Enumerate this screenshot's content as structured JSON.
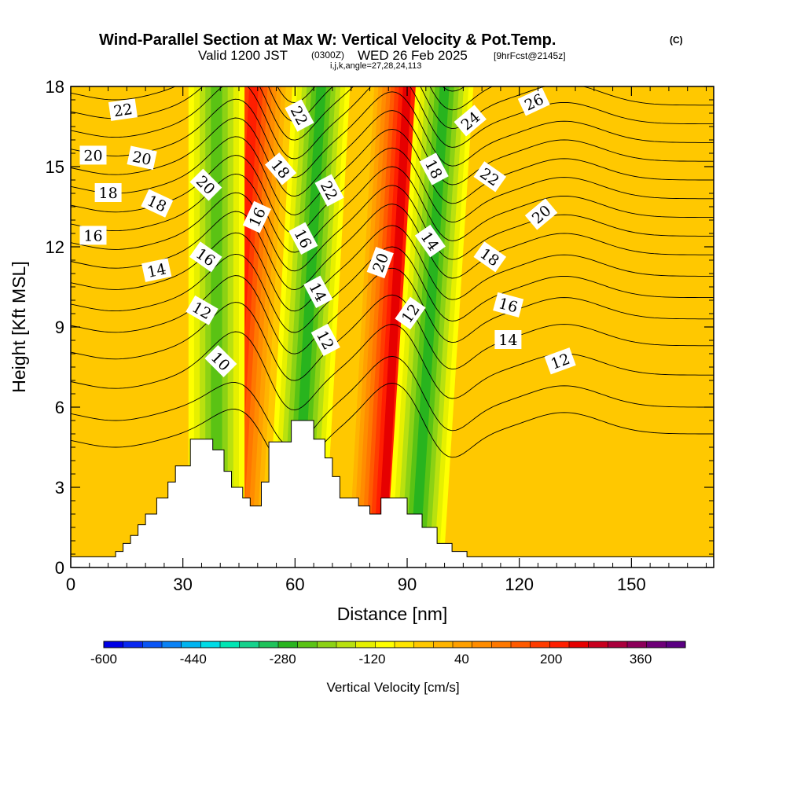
{
  "header": {
    "title": "Wind-Parallel Section at Max W: Vertical Velocity & Pot.Temp.",
    "copyright": "(C)",
    "valid_prefix": "Valid 1200 JST",
    "valid_z": "(0300Z)",
    "valid_date": "WED 26 Feb 2025",
    "forecast": "[9hrFcst@2145z]",
    "indices": "i,j,k,angle=27,28,24,113"
  },
  "chart_data": {
    "type": "heatmap",
    "xlabel": "Distance [nm]",
    "ylabel": "Height [Kft MSL]",
    "xlim": [
      0,
      172
    ],
    "ylim": [
      0,
      18
    ],
    "x_ticks": [
      "0",
      "30",
      "60",
      "90",
      "120",
      "150"
    ],
    "y_ticks": [
      "0",
      "3",
      "6",
      "9",
      "12",
      "15",
      "18"
    ],
    "colorbar": {
      "label": "Vertical Velocity [cm/s]",
      "min": -600,
      "max": 440,
      "step": 40,
      "tick_labels": [
        "-600",
        "-440",
        "-280",
        "-120",
        "40",
        "200",
        "360"
      ],
      "colors": [
        "#0000e6",
        "#0a28f0",
        "#0a55f5",
        "#0a82f5",
        "#00b4f0",
        "#00dce6",
        "#00e6b4",
        "#14d28c",
        "#1ec35a",
        "#28b41e",
        "#5ac314",
        "#8cd214",
        "#b9e10f",
        "#e6f000",
        "#ffff00",
        "#ffe600",
        "#ffc800",
        "#ffb400",
        "#ffa000",
        "#ff8c00",
        "#ff7800",
        "#ff5a00",
        "#ff3c00",
        "#ff1e00",
        "#e60000",
        "#c8001e",
        "#aa003c",
        "#8c005a",
        "#6e0078",
        "#5a0082"
      ]
    },
    "updraft_bands": [
      {
        "x_at_0": 42,
        "x_at_18": 49,
        "peak_w": 340
      },
      {
        "x_at_0": 83,
        "x_at_18": 90,
        "peak_w": 380
      }
    ],
    "downdraft_bands": [
      {
        "x_at_0": 39,
        "x_at_18": 39,
        "peak_w": -180
      },
      {
        "x_at_0": 60,
        "x_at_18": 67,
        "peak_w": -220
      },
      {
        "x_at_0": 92,
        "x_at_18": 100,
        "peak_w": -200
      }
    ],
    "terrain": [
      [
        0,
        0.4
      ],
      [
        12,
        0.4
      ],
      [
        12,
        0.6
      ],
      [
        14,
        0.6
      ],
      [
        14,
        0.9
      ],
      [
        16,
        0.9
      ],
      [
        16,
        1.2
      ],
      [
        18,
        1.2
      ],
      [
        18,
        1.6
      ],
      [
        20,
        1.6
      ],
      [
        20,
        2.0
      ],
      [
        23,
        2.0
      ],
      [
        23,
        2.6
      ],
      [
        26,
        2.6
      ],
      [
        26,
        3.2
      ],
      [
        28,
        3.2
      ],
      [
        28,
        3.8
      ],
      [
        32,
        3.8
      ],
      [
        32,
        4.8
      ],
      [
        38,
        4.8
      ],
      [
        38,
        4.4
      ],
      [
        41,
        4.4
      ],
      [
        41,
        3.6
      ],
      [
        43,
        3.6
      ],
      [
        43,
        3.0
      ],
      [
        46,
        3.0
      ],
      [
        46,
        2.6
      ],
      [
        48,
        2.6
      ],
      [
        48,
        2.3
      ],
      [
        51,
        2.3
      ],
      [
        51,
        3.2
      ],
      [
        53,
        3.2
      ],
      [
        53,
        4.7
      ],
      [
        59,
        4.7
      ],
      [
        59,
        5.5
      ],
      [
        65,
        5.5
      ],
      [
        65,
        4.8
      ],
      [
        68,
        4.8
      ],
      [
        68,
        4.1
      ],
      [
        70,
        4.1
      ],
      [
        70,
        3.4
      ],
      [
        72,
        3.4
      ],
      [
        72,
        2.6
      ],
      [
        77,
        2.6
      ],
      [
        77,
        2.3
      ],
      [
        80,
        2.3
      ],
      [
        80,
        2.0
      ],
      [
        83,
        2.0
      ],
      [
        83,
        2.6
      ],
      [
        90,
        2.6
      ],
      [
        90,
        2.0
      ],
      [
        94,
        2.0
      ],
      [
        94,
        1.5
      ],
      [
        98,
        1.5
      ],
      [
        98,
        0.9
      ],
      [
        102,
        0.9
      ],
      [
        102,
        0.6
      ],
      [
        106,
        0.6
      ],
      [
        106,
        0.4
      ],
      [
        172,
        0.4
      ]
    ],
    "theta_contours": [
      {
        "base": 5.0,
        "label": ""
      },
      {
        "base": 6.0,
        "label": "10"
      },
      {
        "base": 7.2,
        "label": ""
      },
      {
        "base": 8.3,
        "label": "12"
      },
      {
        "base": 9.3,
        "label": ""
      },
      {
        "base": 10.1,
        "label": "14"
      },
      {
        "base": 10.9,
        "label": ""
      },
      {
        "base": 11.7,
        "label": "16"
      },
      {
        "base": 12.4,
        "label": ""
      },
      {
        "base": 13.1,
        "label": "18"
      },
      {
        "base": 13.8,
        "label": ""
      },
      {
        "base": 14.5,
        "label": "20"
      },
      {
        "base": 15.2,
        "label": ""
      },
      {
        "base": 15.9,
        "label": "22"
      },
      {
        "base": 16.6,
        "label": ""
      },
      {
        "base": 17.3,
        "label": "24"
      },
      {
        "base": 18.0,
        "label": ""
      },
      {
        "base": 18.7,
        "label": "26"
      }
    ],
    "contour_labels": [
      {
        "text": "22",
        "x": 14,
        "y": 17.1,
        "rot": -8
      },
      {
        "text": "20",
        "x": 6,
        "y": 15.4,
        "rot": 0
      },
      {
        "text": "20",
        "x": 19,
        "y": 15.3,
        "rot": 12
      },
      {
        "text": "18",
        "x": 10,
        "y": 14.0,
        "rot": 0
      },
      {
        "text": "18",
        "x": 23,
        "y": 13.6,
        "rot": 25
      },
      {
        "text": "16",
        "x": 6,
        "y": 12.4,
        "rot": 0
      },
      {
        "text": "14",
        "x": 23,
        "y": 11.1,
        "rot": -12
      },
      {
        "text": "20",
        "x": 36,
        "y": 14.3,
        "rot": 45
      },
      {
        "text": "16",
        "x": 36,
        "y": 11.6,
        "rot": 35
      },
      {
        "text": "12",
        "x": 35,
        "y": 9.6,
        "rot": 30
      },
      {
        "text": "10",
        "x": 40,
        "y": 7.7,
        "rot": 45
      },
      {
        "text": "16",
        "x": 50,
        "y": 13.1,
        "rot": -65
      },
      {
        "text": "18",
        "x": 56,
        "y": 14.9,
        "rot": 50
      },
      {
        "text": "22",
        "x": 61,
        "y": 16.9,
        "rot": 62
      },
      {
        "text": "22",
        "x": 69,
        "y": 14.1,
        "rot": 62
      },
      {
        "text": "16",
        "x": 62,
        "y": 12.3,
        "rot": 62
      },
      {
        "text": "14",
        "x": 66,
        "y": 10.3,
        "rot": 62
      },
      {
        "text": "12",
        "x": 68,
        "y": 8.5,
        "rot": 62
      },
      {
        "text": "20",
        "x": 83,
        "y": 11.4,
        "rot": -70
      },
      {
        "text": "12",
        "x": 91,
        "y": 9.5,
        "rot": -55
      },
      {
        "text": "18",
        "x": 97,
        "y": 14.9,
        "rot": 62
      },
      {
        "text": "14",
        "x": 96,
        "y": 12.2,
        "rot": 55
      },
      {
        "text": "24",
        "x": 107,
        "y": 16.7,
        "rot": -40
      },
      {
        "text": "22",
        "x": 112,
        "y": 14.6,
        "rot": 35
      },
      {
        "text": "18",
        "x": 112,
        "y": 11.6,
        "rot": 35
      },
      {
        "text": "26",
        "x": 124,
        "y": 17.4,
        "rot": -25
      },
      {
        "text": "20",
        "x": 126,
        "y": 13.2,
        "rot": -40
      },
      {
        "text": "16",
        "x": 117,
        "y": 9.8,
        "rot": 15
      },
      {
        "text": "14",
        "x": 117,
        "y": 8.5,
        "rot": 0
      },
      {
        "text": "12",
        "x": 131,
        "y": 7.7,
        "rot": -20
      }
    ]
  }
}
